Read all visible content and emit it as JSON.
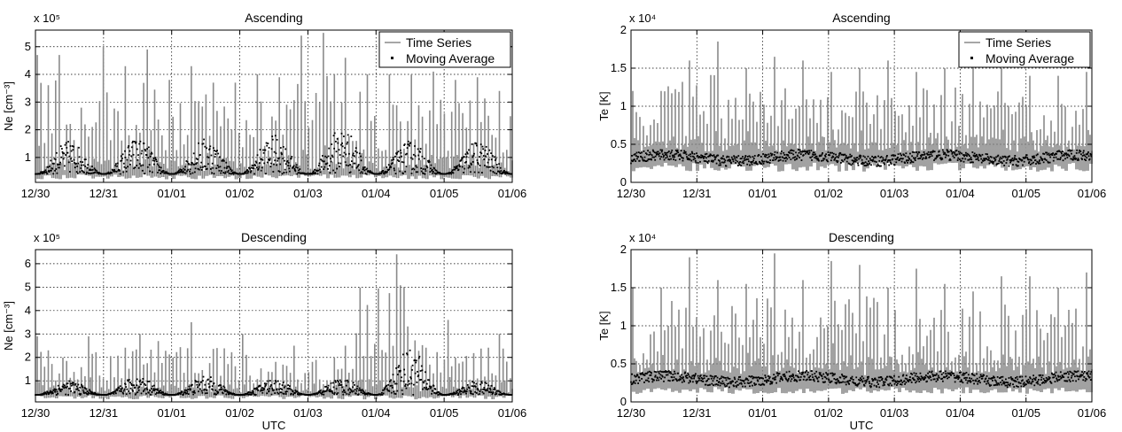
{
  "panels": [
    {
      "title": "Ascending",
      "ylabel": "Ne [cm⁻³]",
      "exponent_label": "x 10⁵",
      "xlabel": "",
      "legend": [
        "Time Series",
        "Moving Average"
      ],
      "ylim": [
        0.1,
        5.6
      ],
      "yticks": [
        1,
        2,
        3,
        4,
        5
      ],
      "ytick_labels": [
        "1",
        "2",
        "3",
        "4",
        "5"
      ],
      "xticks": [
        "12/30",
        "12/31",
        "01/01",
        "01/02",
        "01/03",
        "01/04",
        "01/05",
        "01/06"
      ]
    },
    {
      "title": "Descending",
      "ylabel": "Ne [cm⁻³]",
      "exponent_label": "x 10⁵",
      "xlabel": "UTC",
      "legend": [],
      "ylim": [
        0.1,
        6.6
      ],
      "yticks": [
        1,
        2,
        3,
        4,
        5,
        6
      ],
      "ytick_labels": [
        "1",
        "2",
        "3",
        "4",
        "5",
        "6"
      ],
      "xticks": [
        "12/30",
        "12/31",
        "01/01",
        "01/02",
        "01/03",
        "01/04",
        "01/05",
        "01/06"
      ]
    },
    {
      "title": "Ascending",
      "ylabel": "Te [K]",
      "exponent_label": "x 10⁴",
      "xlabel": "",
      "legend": [
        "Time Series",
        "Moving Average"
      ],
      "ylim": [
        0,
        2
      ],
      "yticks": [
        0,
        0.5,
        1,
        1.5,
        2
      ],
      "ytick_labels": [
        "0",
        "0.5",
        "1",
        "1.5",
        "2"
      ],
      "xticks": [
        "12/30",
        "12/31",
        "01/01",
        "01/02",
        "01/03",
        "01/04",
        "01/05",
        "01/06"
      ]
    },
    {
      "title": "Descending",
      "ylabel": "Te [K]",
      "exponent_label": "x 10⁴",
      "xlabel": "UTC",
      "legend": [],
      "ylim": [
        0,
        2
      ],
      "yticks": [
        0,
        0.5,
        1,
        1.5,
        2
      ],
      "ytick_labels": [
        "0",
        "0.5",
        "1",
        "1.5",
        "2"
      ],
      "xticks": [
        "12/30",
        "12/31",
        "01/01",
        "01/02",
        "01/03",
        "01/04",
        "01/05",
        "01/06"
      ]
    }
  ],
  "chart_data": [
    {
      "type": "line",
      "title": "Ascending",
      "ylabel": "Ne [cm⁻³]",
      "xlabel": "",
      "x": [
        "12/30",
        "12/31",
        "01/01",
        "01/02",
        "01/03",
        "01/04",
        "01/05",
        "01/06"
      ],
      "ylim": [
        0.1,
        5.6
      ],
      "grid": true,
      "legend_position": "top-right",
      "series": [
        {
          "name": "Time Series",
          "peaks": [
            4.7,
            2.8,
            5.0,
            4.3,
            4.9,
            3.8,
            4.3,
            3.7,
            4.0,
            3.9,
            5.4,
            5.5,
            4.6,
            4.0,
            4.0,
            4.1,
            3.8,
            3.9,
            3.4
          ],
          "low": 0.3
        },
        {
          "name": "Moving Average",
          "daily_max": [
            1.6,
            1.7,
            1.7,
            1.8,
            2.1,
            1.6,
            1.6
          ],
          "daily_min": 0.4
        }
      ]
    },
    {
      "type": "line",
      "title": "Descending",
      "ylabel": "Ne [cm⁻³]",
      "xlabel": "UTC",
      "x": [
        "12/30",
        "12/31",
        "01/01",
        "01/02",
        "01/03",
        "01/04",
        "01/05",
        "01/06"
      ],
      "ylim": [
        0.1,
        6.6
      ],
      "grid": true,
      "series": [
        {
          "name": "Time Series",
          "peaks": [
            2.9,
            3.0,
            3.5,
            3.0,
            2.5,
            2.5,
            6.4,
            3.6,
            3.0
          ],
          "low": 0.3
        },
        {
          "name": "Moving Average",
          "daily_max": [
            1.0,
            1.2,
            1.2,
            1.1,
            1.1,
            2.4,
            1.0
          ],
          "daily_min": 0.4
        }
      ]
    },
    {
      "type": "line",
      "title": "Ascending",
      "ylabel": "Te [K]",
      "xlabel": "",
      "x": [
        "12/30",
        "12/31",
        "01/01",
        "01/02",
        "01/03",
        "01/04",
        "01/05",
        "01/06"
      ],
      "ylim": [
        0,
        2
      ],
      "grid": true,
      "legend_position": "top-right",
      "series": [
        {
          "name": "Time Series",
          "peaks": [
            1.2,
            1.6,
            1.85,
            1.5,
            1.65,
            1.6,
            1.45,
            1.5,
            1.6,
            1.45,
            1.5,
            1.6,
            1.5,
            1.4,
            1.4,
            1.45
          ],
          "low": 0.2
        },
        {
          "name": "Moving Average",
          "level": 0.32
        }
      ]
    },
    {
      "type": "line",
      "title": "Descending",
      "ylabel": "Te [K]",
      "xlabel": "UTC",
      "x": [
        "12/30",
        "12/31",
        "01/01",
        "01/02",
        "01/03",
        "01/04",
        "01/05",
        "01/06"
      ],
      "ylim": [
        0,
        2
      ],
      "grid": true,
      "series": [
        {
          "name": "Time Series",
          "peaks": [
            1.5,
            1.9,
            1.6,
            1.55,
            1.95,
            1.6,
            1.85,
            1.8,
            1.5,
            1.75,
            1.55,
            1.45,
            1.65,
            1.5,
            1.7
          ],
          "low": 0.15
        },
        {
          "name": "Moving Average",
          "level": 0.3
        }
      ]
    }
  ]
}
